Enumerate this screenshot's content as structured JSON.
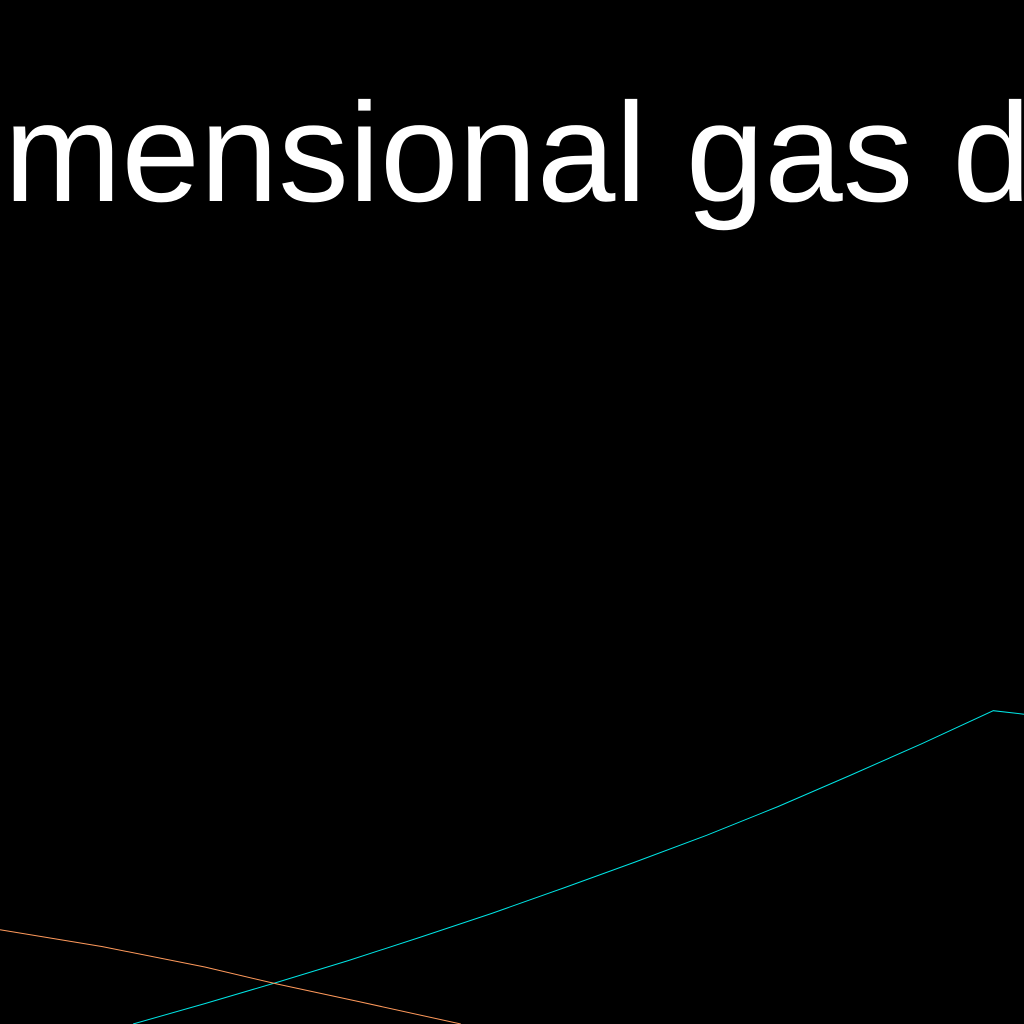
{
  "chart_data": {
    "type": "line",
    "title": "mensional gas d",
    "background": "#000000",
    "grid": false,
    "xlim": [
      0,
      1
    ],
    "ylim": [
      0,
      1
    ],
    "series": [
      {
        "color": "#00e5e5",
        "x": [
          0.13,
          0.2,
          0.27,
          0.34,
          0.41,
          0.48,
          0.55,
          0.62,
          0.69,
          0.76,
          0.83,
          0.9,
          0.97,
          1.0
        ],
        "y": [
          0.0,
          0.029,
          0.059,
          0.09,
          0.123,
          0.157,
          0.193,
          0.23,
          0.268,
          0.309,
          0.353,
          0.398,
          0.445,
          0.44
        ]
      },
      {
        "color": "#ff9a5c",
        "x": [
          0.0,
          0.1,
          0.2,
          0.27,
          0.35,
          0.45
        ],
        "y": [
          0.134,
          0.11,
          0.081,
          0.057,
          0.032,
          0.0
        ]
      }
    ]
  }
}
